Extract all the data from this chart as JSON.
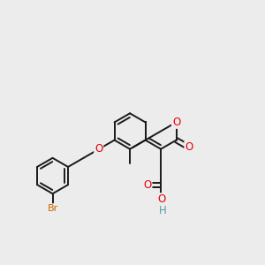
{
  "bg_color": "#ececec",
  "bond_color": "#1a1a1a",
  "bond_width": 1.4,
  "atom_colors": {
    "O": "#e8000d",
    "Br": "#cc6600",
    "H": "#4d9faa"
  },
  "figsize": [
    3.0,
    3.0
  ],
  "dpi": 100,
  "xlim": [
    0.0,
    1.0
  ],
  "ylim": [
    0.18,
    0.88
  ]
}
